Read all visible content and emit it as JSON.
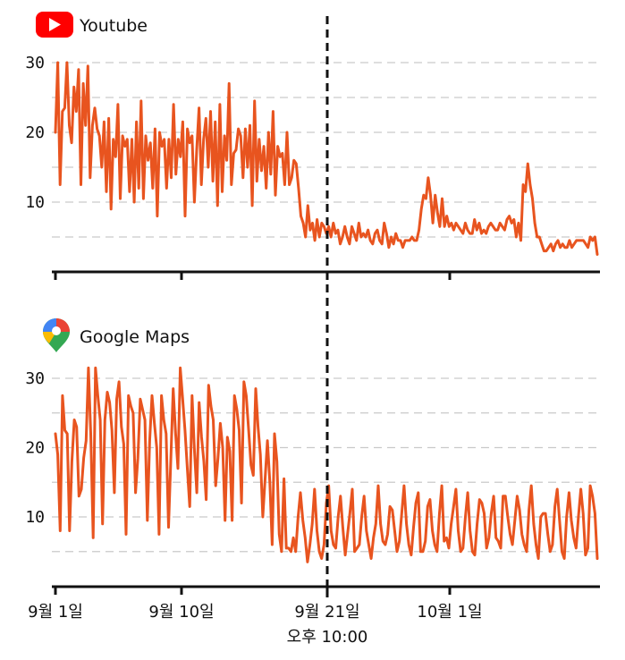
{
  "chart_data": [
    {
      "type": "line",
      "title": "Youtube",
      "icon": "youtube-logo-icon",
      "color": "#e8541f",
      "ylim": [
        0,
        32
      ],
      "yticks": [
        10,
        20,
        30
      ],
      "grid": true,
      "y_step": 5,
      "marker_date": "9월 21일 오후 10:00",
      "series": [
        {
          "values": [
            20,
            30,
            12.5,
            23,
            23.5,
            30,
            21,
            18.5,
            26.5,
            23,
            29,
            12.5,
            27,
            21,
            29.5,
            13.5,
            21,
            23.5,
            20.5,
            19.5,
            15,
            21.5,
            11.5,
            22,
            9,
            19,
            16.5,
            24,
            10.5,
            19.5,
            18,
            19,
            11.5,
            19,
            10,
            21.5,
            12,
            24.5,
            10.5,
            19.5,
            16,
            18.5,
            12,
            20.5,
            8,
            20,
            18,
            19,
            12,
            19,
            13.5,
            24,
            14,
            19,
            16.5,
            21.5,
            8,
            20.5,
            18.5,
            19.5,
            10,
            17.5,
            23.5,
            12.5,
            19,
            22,
            15,
            23,
            13,
            21.5,
            9.5,
            24,
            11.5,
            19.5,
            16,
            27,
            12.5,
            17,
            17.5,
            20.5,
            19.5,
            13.5,
            20.5,
            15,
            21,
            9.5,
            24.5,
            13,
            19,
            14.5,
            18,
            12,
            20,
            14,
            23,
            11,
            18,
            16.5,
            17,
            12.5,
            20,
            12.5,
            13.5,
            16,
            15.5,
            12,
            8,
            7,
            5,
            9.5,
            6,
            7,
            4.5,
            7.5,
            5,
            7,
            6.5,
            5.5,
            6.5,
            5,
            7,
            5.5,
            6,
            4,
            5,
            6.5,
            5,
            4,
            6.5,
            5.5,
            4.5,
            7,
            5,
            5.5,
            5,
            6,
            4.5,
            4,
            5.5,
            6,
            4.5,
            4,
            7,
            5.5,
            3.5,
            5,
            4,
            5.5,
            4.5,
            4.5,
            3.5,
            4.5,
            4.5,
            4.5,
            5,
            4.5,
            4.5,
            6,
            9,
            11,
            10.5,
            13.5,
            11,
            7,
            11,
            8.5,
            6.5,
            10.5,
            6.5,
            8,
            6.5,
            7,
            6,
            7,
            6.5,
            6,
            5.5,
            7,
            6,
            5.5,
            5.5,
            7.5,
            6,
            7,
            5.5,
            6,
            5.5,
            6.5,
            7,
            6.5,
            6,
            6,
            7,
            6.5,
            6,
            7.5,
            8,
            7,
            7.5,
            5,
            7,
            4.5,
            12.5,
            11.5,
            15.5,
            12.5,
            10.5,
            7,
            5,
            5,
            4,
            3,
            3,
            3.5,
            4,
            3,
            4,
            4.5,
            3.5,
            4,
            3.5,
            3.5,
            4.5,
            3.5,
            4,
            4.5,
            4.5,
            4.5,
            4.5,
            4,
            3.5,
            5,
            4.5,
            5,
            2.5
          ]
        }
      ]
    },
    {
      "type": "line",
      "title": "Google Maps",
      "icon": "google-maps-pin-icon",
      "color": "#e8541f",
      "ylim": [
        0,
        32
      ],
      "yticks": [
        10,
        20,
        30
      ],
      "grid": true,
      "y_step": 5,
      "x_ticks": [
        "9월 1일",
        "9월 10일",
        "9월 21일",
        "10월 1일"
      ],
      "marker_label_line1": "9월 21일",
      "marker_label_line2": "오후 10:00",
      "series": [
        {
          "values": [
            22,
            19,
            8,
            27.5,
            22.5,
            22,
            8,
            18,
            24,
            23,
            13,
            14,
            18.5,
            21,
            31.5,
            22,
            7,
            31.5,
            27.5,
            24,
            9,
            24,
            28,
            26.5,
            22.5,
            13.5,
            27,
            29.5,
            23,
            20.5,
            7.5,
            27.5,
            26,
            25,
            13.5,
            18.5,
            27,
            25.5,
            24,
            9.5,
            21,
            27.5,
            23.5,
            20,
            7.5,
            27.5,
            24,
            22,
            8.5,
            18.5,
            28.5,
            22,
            17,
            31.5,
            27,
            22.5,
            17,
            11.5,
            27.5,
            19.5,
            13.5,
            26.5,
            21.5,
            18,
            12.5,
            29,
            26,
            24,
            14.5,
            18.5,
            23.5,
            20,
            9.5,
            21.5,
            19.5,
            9.5,
            27.5,
            25.5,
            22.5,
            12,
            29.5,
            27.5,
            22.5,
            17.5,
            16,
            28.5,
            23,
            19,
            10,
            15.5,
            21,
            15,
            6,
            22,
            18,
            7.5,
            5,
            15.5,
            5.5,
            5.5,
            5,
            7,
            5,
            10,
            13.5,
            9.5,
            7,
            3.5,
            6,
            9,
            14,
            8,
            5,
            4,
            6,
            12,
            14.5,
            8,
            6,
            5.5,
            10,
            13,
            8.5,
            4.5,
            7.5,
            10.5,
            14,
            5,
            5.5,
            6,
            10,
            13,
            8,
            6,
            4,
            7,
            9,
            14.5,
            9,
            6.5,
            6,
            7.5,
            11.5,
            11,
            8,
            5,
            6.5,
            10.5,
            14.5,
            9,
            6,
            4.5,
            8.5,
            12,
            13.5,
            5,
            5,
            6.5,
            11.5,
            12.5,
            8,
            6,
            5,
            10.5,
            14.5,
            6.5,
            7,
            5.5,
            9,
            11.5,
            14,
            8,
            5,
            5.5,
            10,
            13.5,
            8,
            5,
            4.5,
            9,
            12.5,
            12,
            10.5,
            5.5,
            7,
            10.5,
            13,
            7,
            6.5,
            5.5,
            13,
            13,
            10,
            7.5,
            6,
            9.5,
            13,
            11,
            7.5,
            6,
            5,
            11,
            14.5,
            9,
            6,
            4,
            10,
            10.5,
            10.5,
            7.5,
            5,
            6,
            11.5,
            14,
            9.5,
            5,
            4,
            10,
            13.5,
            9.5,
            7,
            5.5,
            10,
            14,
            10.5,
            4.5,
            5.5,
            14.5,
            13,
            10.5,
            4
          ]
        }
      ]
    }
  ]
}
